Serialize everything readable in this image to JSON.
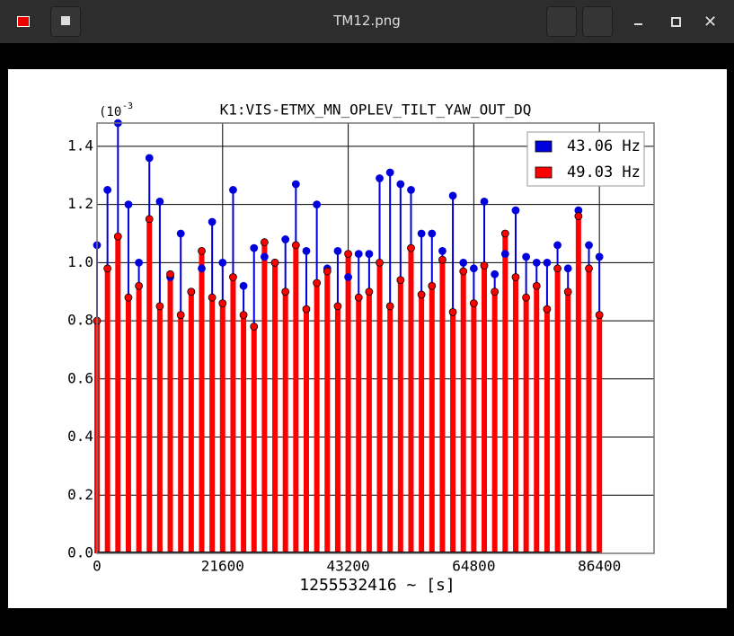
{
  "window": {
    "title": "TM12.png"
  },
  "chart_data": {
    "type": "stem",
    "title": "K1:VIS-ETMX_MN_OPLEV_TILT_YAW_OUT_DQ",
    "xlabel": "1255532416 ~ [s]",
    "y_multiplier_label": "(10",
    "y_multiplier_exponent": "-3",
    "x": [
      0,
      1800,
      3600,
      5400,
      7200,
      9000,
      10800,
      12600,
      14400,
      16200,
      18000,
      19800,
      21600,
      23400,
      25200,
      27000,
      28800,
      30600,
      32400,
      34200,
      36000,
      37800,
      39600,
      41400,
      43200,
      45000,
      46800,
      48600,
      50400,
      52200,
      54000,
      55800,
      57600,
      59400,
      61200,
      63000,
      64800,
      66600,
      68400,
      70200,
      72000,
      73800,
      75600,
      77400,
      79200,
      81000,
      82800,
      84600,
      86400
    ],
    "series": [
      {
        "name": "43.06 Hz",
        "color": "#0000dd",
        "values": [
          1.06,
          1.25,
          1.48,
          1.2,
          1.0,
          1.36,
          1.21,
          0.95,
          1.1,
          0.9,
          0.98,
          1.14,
          1.0,
          1.25,
          0.92,
          1.05,
          1.02,
          1.0,
          1.08,
          1.27,
          1.04,
          1.2,
          0.98,
          1.04,
          0.95,
          1.03,
          1.03,
          1.29,
          1.31,
          1.27,
          1.25,
          1.1,
          1.1,
          1.04,
          1.23,
          1.0,
          0.98,
          1.21,
          0.96,
          1.03,
          1.18,
          1.02,
          1.0,
          1.0,
          1.06,
          0.98,
          1.18,
          1.06,
          1.02
        ]
      },
      {
        "name": "49.03 Hz",
        "color": "#ff0000",
        "values": [
          0.8,
          0.98,
          1.09,
          0.88,
          0.92,
          1.15,
          0.85,
          0.96,
          0.82,
          0.9,
          1.04,
          0.88,
          0.86,
          0.95,
          0.82,
          0.78,
          1.07,
          1.0,
          0.9,
          1.06,
          0.84,
          0.93,
          0.97,
          0.85,
          1.03,
          0.88,
          0.9,
          1.0,
          0.85,
          0.94,
          1.05,
          0.89,
          0.92,
          1.01,
          0.83,
          0.97,
          0.86,
          0.99,
          0.9,
          1.1,
          0.95,
          0.88,
          0.92,
          0.84,
          0.98,
          0.9,
          1.16,
          0.98,
          0.82
        ]
      }
    ],
    "xlim": [
      0,
      95800
    ],
    "ylim": [
      0,
      1.48
    ],
    "xticks": [
      0,
      21600,
      43200,
      64800,
      86400
    ],
    "yticks": [
      {
        "value": 0,
        "label": "0.0"
      },
      0.2,
      0.4,
      0.6,
      0.8,
      {
        "value": 1,
        "label": "1.0"
      },
      1.2,
      1.4
    ],
    "grid": true,
    "legend": "upper right"
  }
}
